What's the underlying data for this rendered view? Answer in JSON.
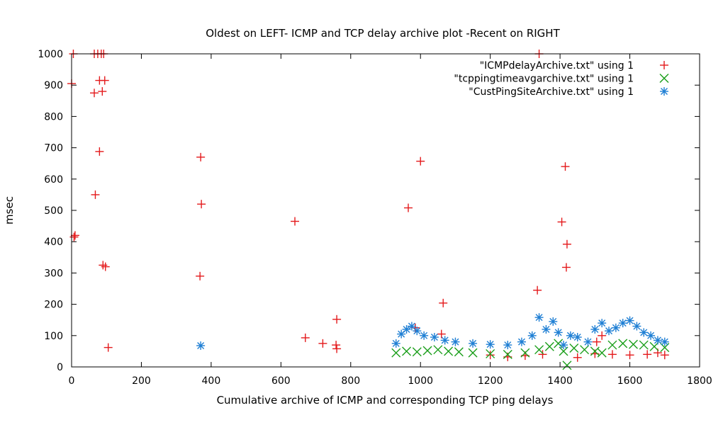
{
  "chart_data": {
    "type": "scatter",
    "title": "Oldest on LEFT- ICMP and TCP delay archive plot -Recent on RIGHT",
    "xlabel": "Cumulative archive of ICMP and corresponding TCP ping delays",
    "ylabel": "msec",
    "xlim": [
      0,
      1800
    ],
    "ylim": [
      0,
      1000
    ],
    "xticks": [
      0,
      200,
      400,
      600,
      800,
      1000,
      1200,
      1400,
      1600,
      1800
    ],
    "yticks": [
      0,
      100,
      200,
      300,
      400,
      500,
      600,
      700,
      800,
      900,
      1000
    ],
    "grid": false,
    "legend_position": "top-right",
    "series": [
      {
        "name": "\"ICMPdelayArchive.txt\" using 1",
        "color": "#e41a1c",
        "marker": "plus",
        "points": [
          [
            0,
            905
          ],
          [
            5,
            1000
          ],
          [
            7,
            415
          ],
          [
            10,
            420
          ],
          [
            65,
            875
          ],
          [
            65,
            1000
          ],
          [
            68,
            550
          ],
          [
            75,
            1000
          ],
          [
            80,
            915
          ],
          [
            80,
            688
          ],
          [
            85,
            1000
          ],
          [
            88,
            880
          ],
          [
            90,
            325
          ],
          [
            92,
            1000
          ],
          [
            95,
            915
          ],
          [
            97,
            320
          ],
          [
            105,
            62
          ],
          [
            370,
            670
          ],
          [
            372,
            520
          ],
          [
            368,
            290
          ],
          [
            640,
            465
          ],
          [
            670,
            93
          ],
          [
            720,
            75
          ],
          [
            760,
            152
          ],
          [
            758,
            70
          ],
          [
            760,
            58
          ],
          [
            965,
            508
          ],
          [
            1000,
            657
          ],
          [
            1065,
            204
          ],
          [
            1060,
            105
          ],
          [
            985,
            125
          ],
          [
            1335,
            245
          ],
          [
            1405,
            463
          ],
          [
            1415,
            640
          ],
          [
            1420,
            392
          ],
          [
            1418,
            318
          ],
          [
            1520,
            100
          ],
          [
            1505,
            80
          ],
          [
            1340,
            1000
          ],
          [
            1200,
            38
          ],
          [
            1250,
            32
          ],
          [
            1300,
            36
          ],
          [
            1350,
            40
          ],
          [
            1450,
            30
          ],
          [
            1500,
            42
          ],
          [
            1550,
            40
          ],
          [
            1600,
            38
          ],
          [
            1650,
            40
          ],
          [
            1680,
            45
          ],
          [
            1700,
            38
          ]
        ]
      },
      {
        "name": "\"tcppingtimeavgarchive.txt\" using 1",
        "color": "#1a9e1a",
        "marker": "x",
        "points": [
          [
            930,
            45
          ],
          [
            960,
            50
          ],
          [
            990,
            48
          ],
          [
            1020,
            52
          ],
          [
            1050,
            55
          ],
          [
            1080,
            50
          ],
          [
            1110,
            48
          ],
          [
            1150,
            45
          ],
          [
            1200,
            42
          ],
          [
            1250,
            40
          ],
          [
            1300,
            45
          ],
          [
            1340,
            55
          ],
          [
            1370,
            65
          ],
          [
            1395,
            75
          ],
          [
            1410,
            50
          ],
          [
            1420,
            5
          ],
          [
            1440,
            60
          ],
          [
            1470,
            55
          ],
          [
            1500,
            50
          ],
          [
            1520,
            45
          ],
          [
            1550,
            70
          ],
          [
            1580,
            75
          ],
          [
            1610,
            72
          ],
          [
            1640,
            70
          ],
          [
            1670,
            65
          ],
          [
            1700,
            62
          ]
        ]
      },
      {
        "name": "\"CustPingSiteArchive.txt\" using 1",
        "color": "#1f7fd4",
        "marker": "star",
        "points": [
          [
            370,
            68
          ],
          [
            930,
            75
          ],
          [
            945,
            105
          ],
          [
            960,
            120
          ],
          [
            975,
            130
          ],
          [
            990,
            115
          ],
          [
            1010,
            100
          ],
          [
            1040,
            95
          ],
          [
            1070,
            85
          ],
          [
            1100,
            80
          ],
          [
            1150,
            75
          ],
          [
            1200,
            72
          ],
          [
            1250,
            70
          ],
          [
            1290,
            80
          ],
          [
            1320,
            100
          ],
          [
            1340,
            158
          ],
          [
            1360,
            120
          ],
          [
            1380,
            145
          ],
          [
            1395,
            110
          ],
          [
            1410,
            70
          ],
          [
            1430,
            100
          ],
          [
            1450,
            95
          ],
          [
            1480,
            80
          ],
          [
            1500,
            120
          ],
          [
            1520,
            140
          ],
          [
            1540,
            115
          ],
          [
            1560,
            125
          ],
          [
            1580,
            140
          ],
          [
            1600,
            148
          ],
          [
            1620,
            130
          ],
          [
            1640,
            110
          ],
          [
            1660,
            100
          ],
          [
            1680,
            85
          ],
          [
            1700,
            80
          ]
        ]
      }
    ]
  }
}
